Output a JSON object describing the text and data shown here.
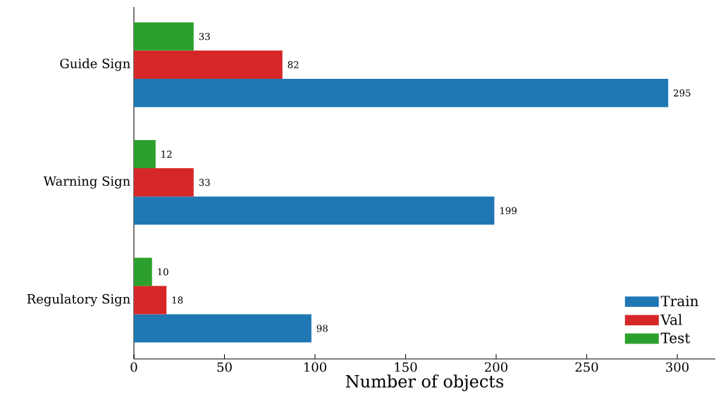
{
  "chart_data": {
    "type": "bar",
    "orientation": "horizontal",
    "xlabel": "Number of objects",
    "categories": [
      "Guide Sign",
      "Warning Sign",
      "Regulatory Sign"
    ],
    "series": [
      {
        "name": "Train",
        "color": "#1f77b4",
        "values": [
          295,
          199,
          98
        ]
      },
      {
        "name": "Val",
        "color": "#d62728",
        "values": [
          82,
          33,
          18
        ]
      },
      {
        "name": "Test",
        "color": "#2ca02c",
        "values": [
          33,
          12,
          10
        ]
      }
    ],
    "xlim": [
      0,
      321
    ],
    "xticks": [
      0,
      50,
      100,
      150,
      200,
      250,
      300
    ],
    "data_labels": true,
    "legend": "bottom right",
    "grid": false
  }
}
